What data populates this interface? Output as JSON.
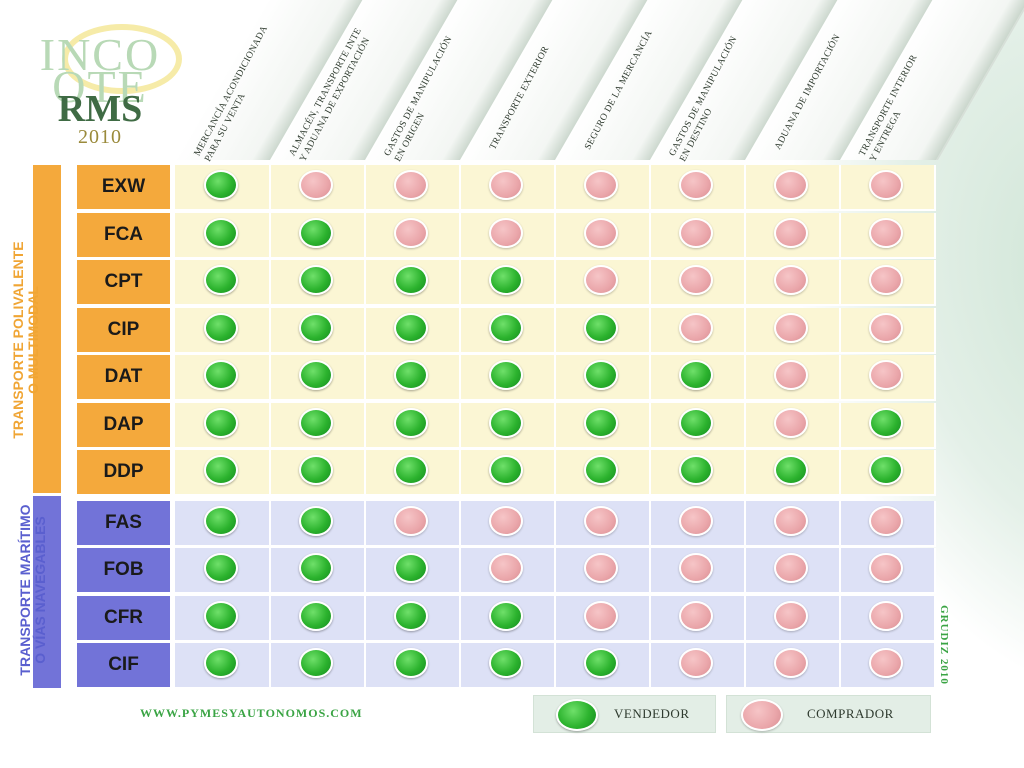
{
  "logo": {
    "line1": "INCO",
    "line2": "OTE",
    "line3": "RMS",
    "year": "2010"
  },
  "columns": [
    "MERCANCÍA ACONDICIONADA\nPARA SU VENTA",
    "ALMACÉN, TRANSPORTE INTE\nY ADUANA DE EXPORTACIÓN",
    "GASTOS DE MANIPULACIÓN\nEN ORIGEN",
    "TRANSPORTE EXTERIOR",
    "SEGURO DE LA MERCANCÍA",
    "GASTOS DE MANIPULACIÓN\nEN DESTINO",
    "ADUANA DE IMPORTACIÓN",
    "TRANSPORTE INTERIOR\nY ENTREGA"
  ],
  "groups": {
    "multimodal": "TRANSPORTE POLIVALENTE\nO MULTIMODAL",
    "maritime": "TRANSPORTE MARÍTIMO\nO VÍAS NAVEGABLES"
  },
  "rows": [
    {
      "term": "EXW",
      "group": "multi",
      "values": [
        "S",
        "B",
        "B",
        "B",
        "B",
        "B",
        "B",
        "B"
      ]
    },
    {
      "term": "FCA",
      "group": "multi",
      "values": [
        "S",
        "S",
        "B",
        "B",
        "B",
        "B",
        "B",
        "B"
      ]
    },
    {
      "term": "CPT",
      "group": "multi",
      "values": [
        "S",
        "S",
        "S",
        "S",
        "B",
        "B",
        "B",
        "B"
      ]
    },
    {
      "term": "CIP",
      "group": "multi",
      "values": [
        "S",
        "S",
        "S",
        "S",
        "S",
        "B",
        "B",
        "B"
      ]
    },
    {
      "term": "DAT",
      "group": "multi",
      "values": [
        "S",
        "S",
        "S",
        "S",
        "S",
        "S",
        "B",
        "B"
      ]
    },
    {
      "term": "DAP",
      "group": "multi",
      "values": [
        "S",
        "S",
        "S",
        "S",
        "S",
        "S",
        "B",
        "S"
      ]
    },
    {
      "term": "DDP",
      "group": "multi",
      "values": [
        "S",
        "S",
        "S",
        "S",
        "S",
        "S",
        "S",
        "S"
      ]
    },
    {
      "term": "FAS",
      "group": "mar",
      "values": [
        "S",
        "S",
        "B",
        "B",
        "B",
        "B",
        "B",
        "B"
      ]
    },
    {
      "term": "FOB",
      "group": "mar",
      "values": [
        "S",
        "S",
        "S",
        "B",
        "B",
        "B",
        "B",
        "B"
      ]
    },
    {
      "term": "CFR",
      "group": "mar",
      "values": [
        "S",
        "S",
        "S",
        "S",
        "B",
        "B",
        "B",
        "B"
      ]
    },
    {
      "term": "CIF",
      "group": "mar",
      "values": [
        "S",
        "S",
        "S",
        "S",
        "S",
        "B",
        "B",
        "B"
      ]
    }
  ],
  "legend": {
    "seller": "VENDEDOR",
    "buyer": "COMPRADOR"
  },
  "footer": {
    "url": "WWW.PYMESYAUTONOMOS.COM",
    "credit": "GRUDIZ 2010"
  },
  "colors": {
    "seller": "#2cb32e",
    "buyer": "#eaa6aa",
    "multimodal": "#f4a93c",
    "maritime": "#7273d8"
  }
}
